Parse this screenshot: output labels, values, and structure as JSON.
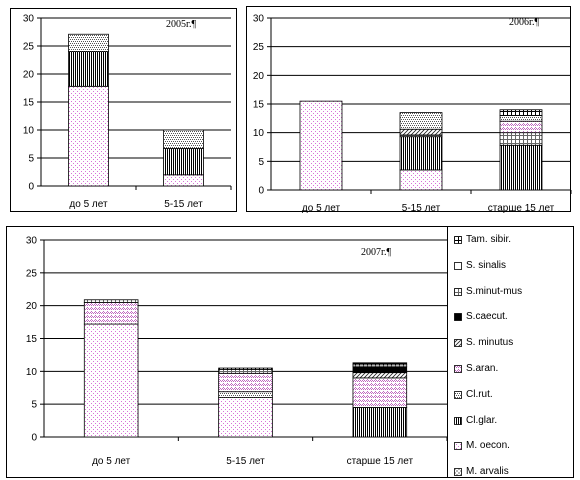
{
  "patterns": {
    "M. oecon.": {
      "color": "#d873d8",
      "kind": "dots"
    },
    "Cl.glar.": {
      "color": "#000000",
      "kind": "vlines"
    },
    "Cl.rut.": {
      "color": "#555555",
      "kind": "dense-dots"
    },
    "S.aran.": {
      "color": "#c06ac0",
      "kind": "lattice"
    },
    "S. minutus": {
      "color": "#222222",
      "kind": "diag"
    },
    "S.caecut.": {
      "color": "#000000",
      "kind": "solid"
    },
    "S.minut-mus": {
      "color": "#666666",
      "kind": "grid"
    },
    "S. sinalis": {
      "color": "#000000",
      "kind": "empty"
    },
    "Tam. sibir.": {
      "color": "#000000",
      "kind": "grid"
    },
    "M. arvalis": {
      "color": "#b5b5b5",
      "kind": "checker"
    }
  },
  "legend": {
    "items": [
      "Tam. sibir.",
      "S. sinalis",
      "S.minut-mus",
      "S.caecut.",
      "S. minutus",
      "S.aran.",
      "Cl.rut.",
      "Cl.glar.",
      "M. oecon.",
      "M. arvalis"
    ]
  },
  "chart_data": [
    {
      "type": "bar",
      "stacked": true,
      "title": "2005г.¶",
      "categories": [
        "до 5 лет",
        "5-15 лет"
      ],
      "yticks": [
        "0",
        "5",
        "10",
        "15",
        "20",
        "25",
        "30"
      ],
      "ylim": [
        0,
        30
      ],
      "grid": true,
      "series": [
        {
          "name": "M. oecon.",
          "values": [
            17.8,
            2.0
          ]
        },
        {
          "name": "Cl.glar.",
          "values": [
            6.2,
            4.7
          ]
        },
        {
          "name": "Cl.rut.",
          "values": [
            3.1,
            3.3
          ]
        }
      ]
    },
    {
      "type": "bar",
      "stacked": true,
      "title": "2006г.¶",
      "categories": [
        "до 5 лет",
        "5-15 лет",
        "старше 15 лет"
      ],
      "yticks": [
        "0",
        "5",
        "10",
        "15",
        "20",
        "25",
        "30"
      ],
      "ylim": [
        0,
        30
      ],
      "grid": true,
      "series": [
        {
          "name": "M. oecon.",
          "values": [
            15.5,
            3.5,
            0
          ]
        },
        {
          "name": "Cl.glar.",
          "values": [
            0,
            5.8,
            7.8
          ]
        },
        {
          "name": "S.minut-mus",
          "values": [
            0,
            0.3,
            2.2
          ]
        },
        {
          "name": "S. minutus",
          "values": [
            0,
            1.0,
            0
          ]
        },
        {
          "name": "S.aran.",
          "values": [
            0,
            0,
            2.0
          ]
        },
        {
          "name": "Cl.rut.",
          "values": [
            0,
            2.9,
            1.0
          ]
        },
        {
          "name": "Tam. sibir.",
          "values": [
            0,
            0,
            1.0
          ]
        }
      ]
    },
    {
      "type": "bar",
      "stacked": true,
      "title": "2007г.¶",
      "categories": [
        "до 5 лет",
        "5-15 лет",
        "старше 15 лет"
      ],
      "yticks": [
        "0",
        "5",
        "10",
        "15",
        "20",
        "25",
        "30"
      ],
      "ylim": [
        0,
        30
      ],
      "grid": true,
      "series": [
        {
          "name": "M. oecon.",
          "values": [
            17.2,
            6.0,
            0
          ]
        },
        {
          "name": "Cl.glar.",
          "values": [
            0,
            0,
            4.5
          ]
        },
        {
          "name": "Cl.rut.",
          "values": [
            0,
            0.9,
            0
          ]
        },
        {
          "name": "S.aran.",
          "values": [
            3.3,
            2.8,
            4.5
          ]
        },
        {
          "name": "S. minutus",
          "values": [
            0,
            0,
            0.8
          ]
        },
        {
          "name": "S.caecut.",
          "values": [
            0,
            0,
            0.9
          ]
        },
        {
          "name": "S.minut-mus",
          "values": [
            0.4,
            0.6,
            0.3
          ]
        },
        {
          "name": "Tam. sibir.",
          "values": [
            0,
            0.2,
            0.3
          ]
        }
      ]
    }
  ]
}
